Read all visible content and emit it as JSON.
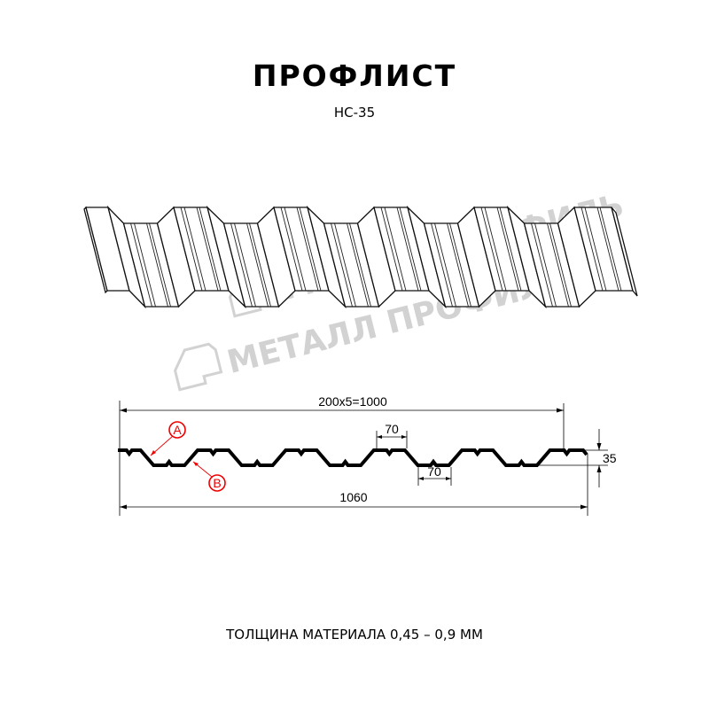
{
  "title": "ПРОФЛИСТ",
  "subtitle": "НС-35",
  "footer": "ТОЛЩИНА МАТЕРИАЛА 0,45 – 0,9 ММ",
  "watermark": "МЕТАЛЛ ПРОФИЛЬ",
  "dimensions": {
    "pitch_total": "200x5=1000",
    "top_width": "70",
    "bottom_width": "70",
    "height": "35",
    "total_width": "1060"
  },
  "callouts": {
    "a": "A",
    "b": "B"
  },
  "colors": {
    "profile": "#000000",
    "callout": "#e00000",
    "watermark": "#d2d2d2"
  }
}
